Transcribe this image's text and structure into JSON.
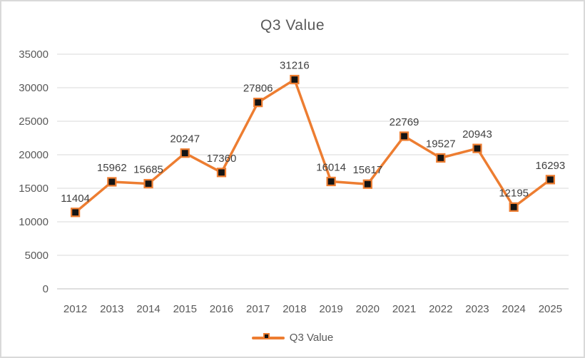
{
  "frame": {
    "background": "#FFFFFF",
    "border_color": "#D9D9D9"
  },
  "chart_data": {
    "type": "line",
    "title": "Q3 Value",
    "legend": "Q3 Value",
    "legend_position": "bottom",
    "categories": [
      "2012",
      "2013",
      "2014",
      "2015",
      "2016",
      "2017",
      "2018",
      "2019",
      "2020",
      "2021",
      "2022",
      "2023",
      "2024",
      "2025"
    ],
    "series": [
      {
        "name": "Q3 Value",
        "values": [
          11404,
          15962,
          15685,
          20247,
          17360,
          27806,
          31216,
          16014,
          15617,
          22769,
          19527,
          20943,
          12195,
          16293
        ]
      }
    ],
    "data_labels": true,
    "xlabel": "",
    "ylabel": "",
    "ylim": [
      0,
      35000
    ],
    "ytick_step": 5000,
    "yticks": [
      "0",
      "5000",
      "10000",
      "15000",
      "20000",
      "25000",
      "30000",
      "35000"
    ],
    "grid": "horizontal",
    "colors": {
      "line": "#ED7D31",
      "marker_fill": "#141414",
      "marker_stroke": "#ED7D31",
      "gridline": "#D9D9D9",
      "axis_line": "#BFBFBF",
      "tick_label": "#595959",
      "data_label": "#404040",
      "title": "#595959"
    }
  }
}
